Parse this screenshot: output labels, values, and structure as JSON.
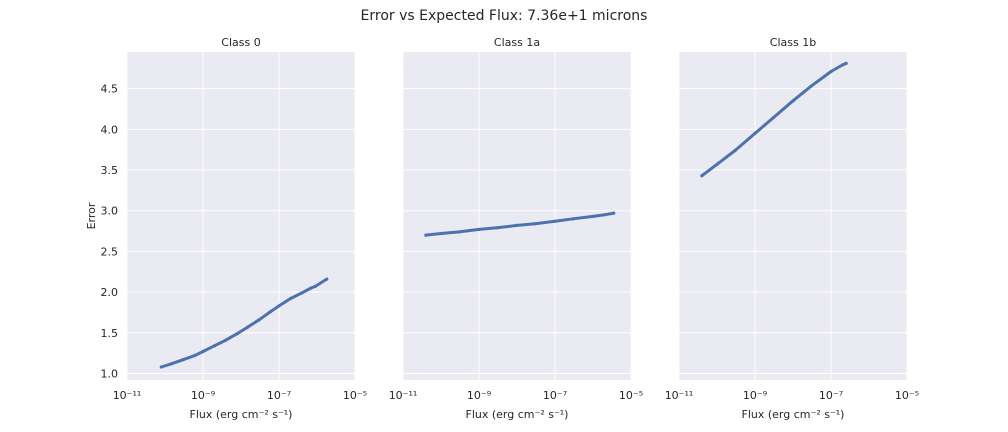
{
  "figure": {
    "suptitle": "Error vs Expected Flux: 7.36e+1 microns"
  },
  "style": {
    "panel_bg": "#eaeaf2",
    "grid_color": "#ffffff",
    "point_color": "#4c72b0",
    "text_color": "#262626"
  },
  "chart_data": [
    {
      "type": "scatter",
      "title": "Class 0",
      "xlabel": "Flux (erg cm⁻² s⁻¹)",
      "ylabel": "Error",
      "xscale": "log",
      "xlim": [
        1e-11,
        1e-05
      ],
      "ylim": [
        0.92,
        4.95
      ],
      "xticks": [
        "10⁻¹¹",
        "10⁻⁹",
        "10⁻⁷",
        "10⁻⁵"
      ],
      "yticks": [
        "1.0",
        "1.5",
        "2.0",
        "2.5",
        "3.0",
        "3.5",
        "4.0",
        "4.5"
      ],
      "grid": true,
      "x": [
        8e-11,
        1.5e-10,
        3e-10,
        6e-10,
        1e-09,
        2e-09,
        4e-09,
        8e-09,
        1.5e-08,
        3e-08,
        6e-08,
        1e-07,
        2e-07,
        4e-07,
        7e-07,
        9e-07,
        1.8e-06
      ],
      "y": [
        1.08,
        1.12,
        1.17,
        1.22,
        1.27,
        1.34,
        1.41,
        1.49,
        1.57,
        1.66,
        1.76,
        1.83,
        1.92,
        1.99,
        2.05,
        2.07,
        2.16
      ]
    },
    {
      "type": "scatter",
      "title": "Class 1a",
      "xlabel": "Flux (erg cm⁻² s⁻¹)",
      "ylabel": "",
      "xscale": "log",
      "xlim": [
        1e-11,
        1e-05
      ],
      "ylim": [
        0.92,
        4.95
      ],
      "xticks": [
        "10⁻¹¹",
        "10⁻⁹",
        "10⁻⁷",
        "10⁻⁵"
      ],
      "yticks": [],
      "grid": true,
      "x": [
        4e-11,
        1e-10,
        3e-10,
        1e-09,
        3e-09,
        1e-08,
        3e-08,
        1e-07,
        3e-07,
        1e-06,
        2e-06,
        3.5e-06
      ],
      "y": [
        2.7,
        2.72,
        2.74,
        2.77,
        2.79,
        2.82,
        2.84,
        2.87,
        2.9,
        2.93,
        2.95,
        2.97
      ]
    },
    {
      "type": "scatter",
      "title": "Class 1b",
      "xlabel": "Flux (erg cm⁻² s⁻¹)",
      "ylabel": "",
      "xscale": "log",
      "xlim": [
        1e-11,
        1e-05
      ],
      "ylim": [
        0.92,
        4.95
      ],
      "xticks": [
        "10⁻¹¹",
        "10⁻⁹",
        "10⁻⁷",
        "10⁻⁵"
      ],
      "yticks": [],
      "grid": true,
      "x": [
        4e-11,
        1e-10,
        3e-10,
        1e-09,
        3e-09,
        1e-08,
        3e-08,
        1e-07,
        2e-07,
        2.5e-07
      ],
      "y": [
        3.43,
        3.57,
        3.74,
        3.95,
        4.14,
        4.35,
        4.53,
        4.71,
        4.79,
        4.81
      ]
    }
  ]
}
